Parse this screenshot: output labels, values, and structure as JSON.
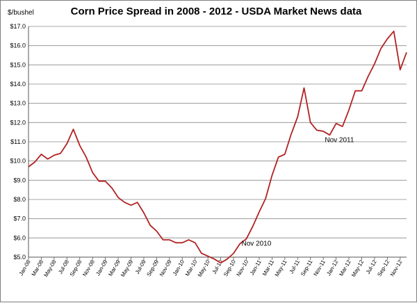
{
  "chart_data": {
    "type": "line",
    "title": "Corn Price Spread in 2008 - 2012 - USDA Market News data",
    "ylabel": "$/bushel",
    "xlabel": "",
    "ylim": [
      5.0,
      17.0
    ],
    "y_ticks": [
      "$5.0",
      "$6.0",
      "$7.0",
      "$8.0",
      "$9.0",
      "$10.0",
      "$11.0",
      "$12.0",
      "$13.0",
      "$14.0",
      "$15.0",
      "$16.0",
      "$17.0"
    ],
    "x_tick_labels": [
      "Jan-08",
      "Mar-08",
      "May-08",
      "Jul-08",
      "Sep-08",
      "Nov-08",
      "Jan-09",
      "Mar-09",
      "May-09",
      "Jul-09",
      "Sep-09",
      "Nov-09",
      "Jan-10",
      "Mar-10",
      "May-10",
      "Jul-10",
      "Sep-10",
      "Nov-10",
      "Jan-11",
      "Mar-11",
      "May-11",
      "Jul-11",
      "Sep-11",
      "Nov-11",
      "Jan-12",
      "Mar-12",
      "May-12",
      "Jul-12",
      "Sep-12",
      "Nov-12"
    ],
    "grid": "horizontal",
    "line_color": "#b22222",
    "series": [
      {
        "values": [
          9.7,
          9.95,
          10.35,
          10.1,
          10.3,
          10.4,
          10.9,
          11.65,
          10.8,
          10.2,
          9.4,
          8.95,
          8.95,
          8.6,
          8.1,
          7.85,
          7.7,
          7.85,
          7.3,
          6.65,
          6.35,
          5.9,
          5.9,
          5.75,
          5.75,
          5.9,
          5.75,
          5.2,
          5.05,
          4.9,
          4.7,
          4.9,
          5.2,
          5.7,
          5.95,
          6.6,
          7.35,
          8.05,
          9.25,
          10.2,
          10.35,
          11.4,
          12.3,
          13.8,
          12.0,
          11.6,
          11.55,
          11.35,
          11.95,
          11.8,
          12.65,
          13.65,
          13.65,
          14.4,
          15.05,
          15.85,
          16.35,
          16.75,
          14.75,
          15.65
        ]
      }
    ],
    "annotations": [
      {
        "text": "Nov 2010",
        "index": 34,
        "value": 5.95
      },
      {
        "text": "Nov 2011",
        "index": 47,
        "value": 11.35
      }
    ]
  }
}
